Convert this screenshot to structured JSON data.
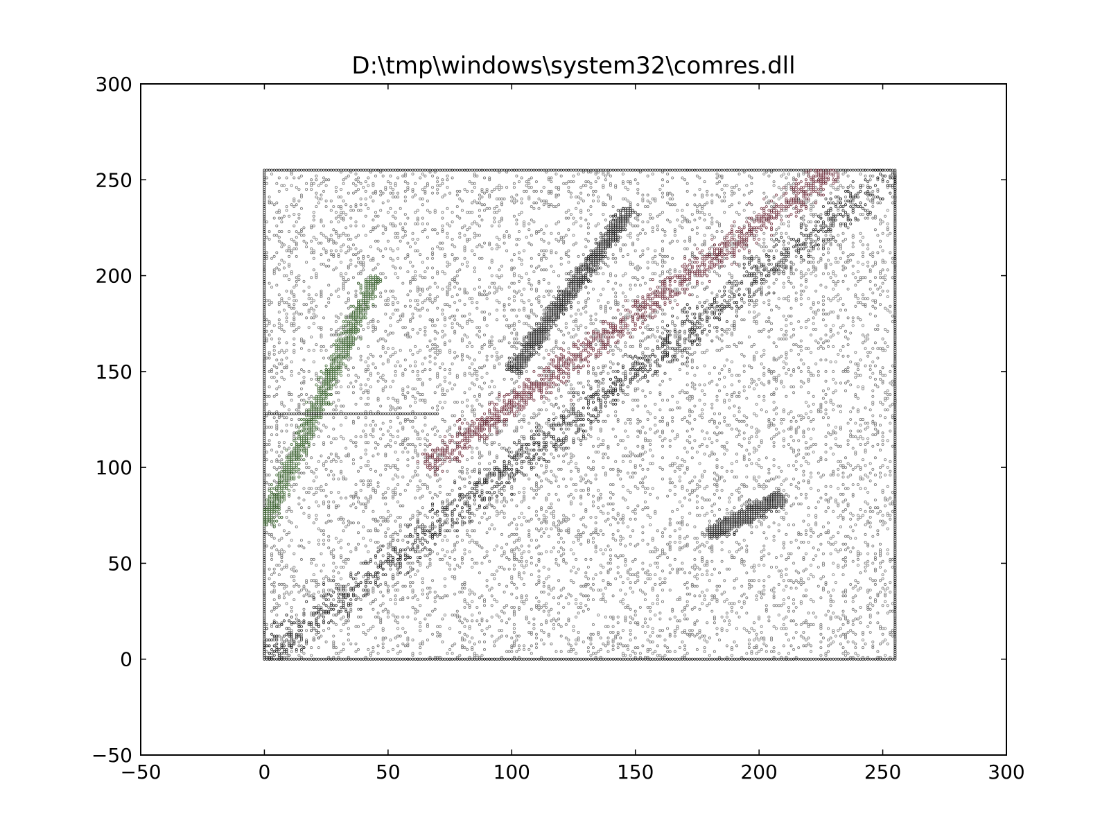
{
  "chart_data": {
    "type": "scatter",
    "title": "D:\\tmp\\windows\\system32\\comres.dll",
    "xlabel": "",
    "ylabel": "",
    "xlim": [
      -50,
      300
    ],
    "ylim": [
      -50,
      300
    ],
    "xticks": [
      -50,
      0,
      50,
      100,
      150,
      200,
      250,
      300
    ],
    "yticks": [
      -50,
      0,
      50,
      100,
      150,
      200,
      250,
      300
    ],
    "xtick_labels": [
      "−50",
      "0",
      "50",
      "100",
      "150",
      "200",
      "250",
      "300"
    ],
    "ytick_labels": [
      "−50",
      "0",
      "50",
      "100",
      "150",
      "200",
      "250",
      "300"
    ],
    "grid": false,
    "legend": "none",
    "marker": "small hollow circle",
    "colors": {
      "points": "#000000",
      "axes": "#000000",
      "red_trace": "#5a1020",
      "green_trace": "#1f4d12"
    },
    "data_extent": {
      "x": [
        0,
        255
      ],
      "y": [
        0,
        255
      ]
    },
    "structures": [
      {
        "name": "diagonal band",
        "from": [
          0,
          0
        ],
        "to": [
          255,
          255
        ]
      },
      {
        "name": "upper diagonal band",
        "from": [
          65,
          100
        ],
        "to": [
          230,
          255
        ],
        "color": "red_trace"
      },
      {
        "name": "steep upper-left line",
        "from": [
          0,
          70
        ],
        "to": [
          45,
          200
        ],
        "color": "green_trace"
      },
      {
        "name": "short line upper middle",
        "from": [
          100,
          150
        ],
        "to": [
          148,
          235
        ]
      },
      {
        "name": "faint low line",
        "from": [
          180,
          65
        ],
        "to": [
          210,
          85
        ]
      },
      {
        "name": "horizontal streak",
        "y": 128,
        "x": [
          0,
          70
        ]
      }
    ],
    "background_scatter": {
      "x": [
        0,
        255
      ],
      "y": [
        0,
        255
      ],
      "point_count_estimate": 60000
    }
  }
}
